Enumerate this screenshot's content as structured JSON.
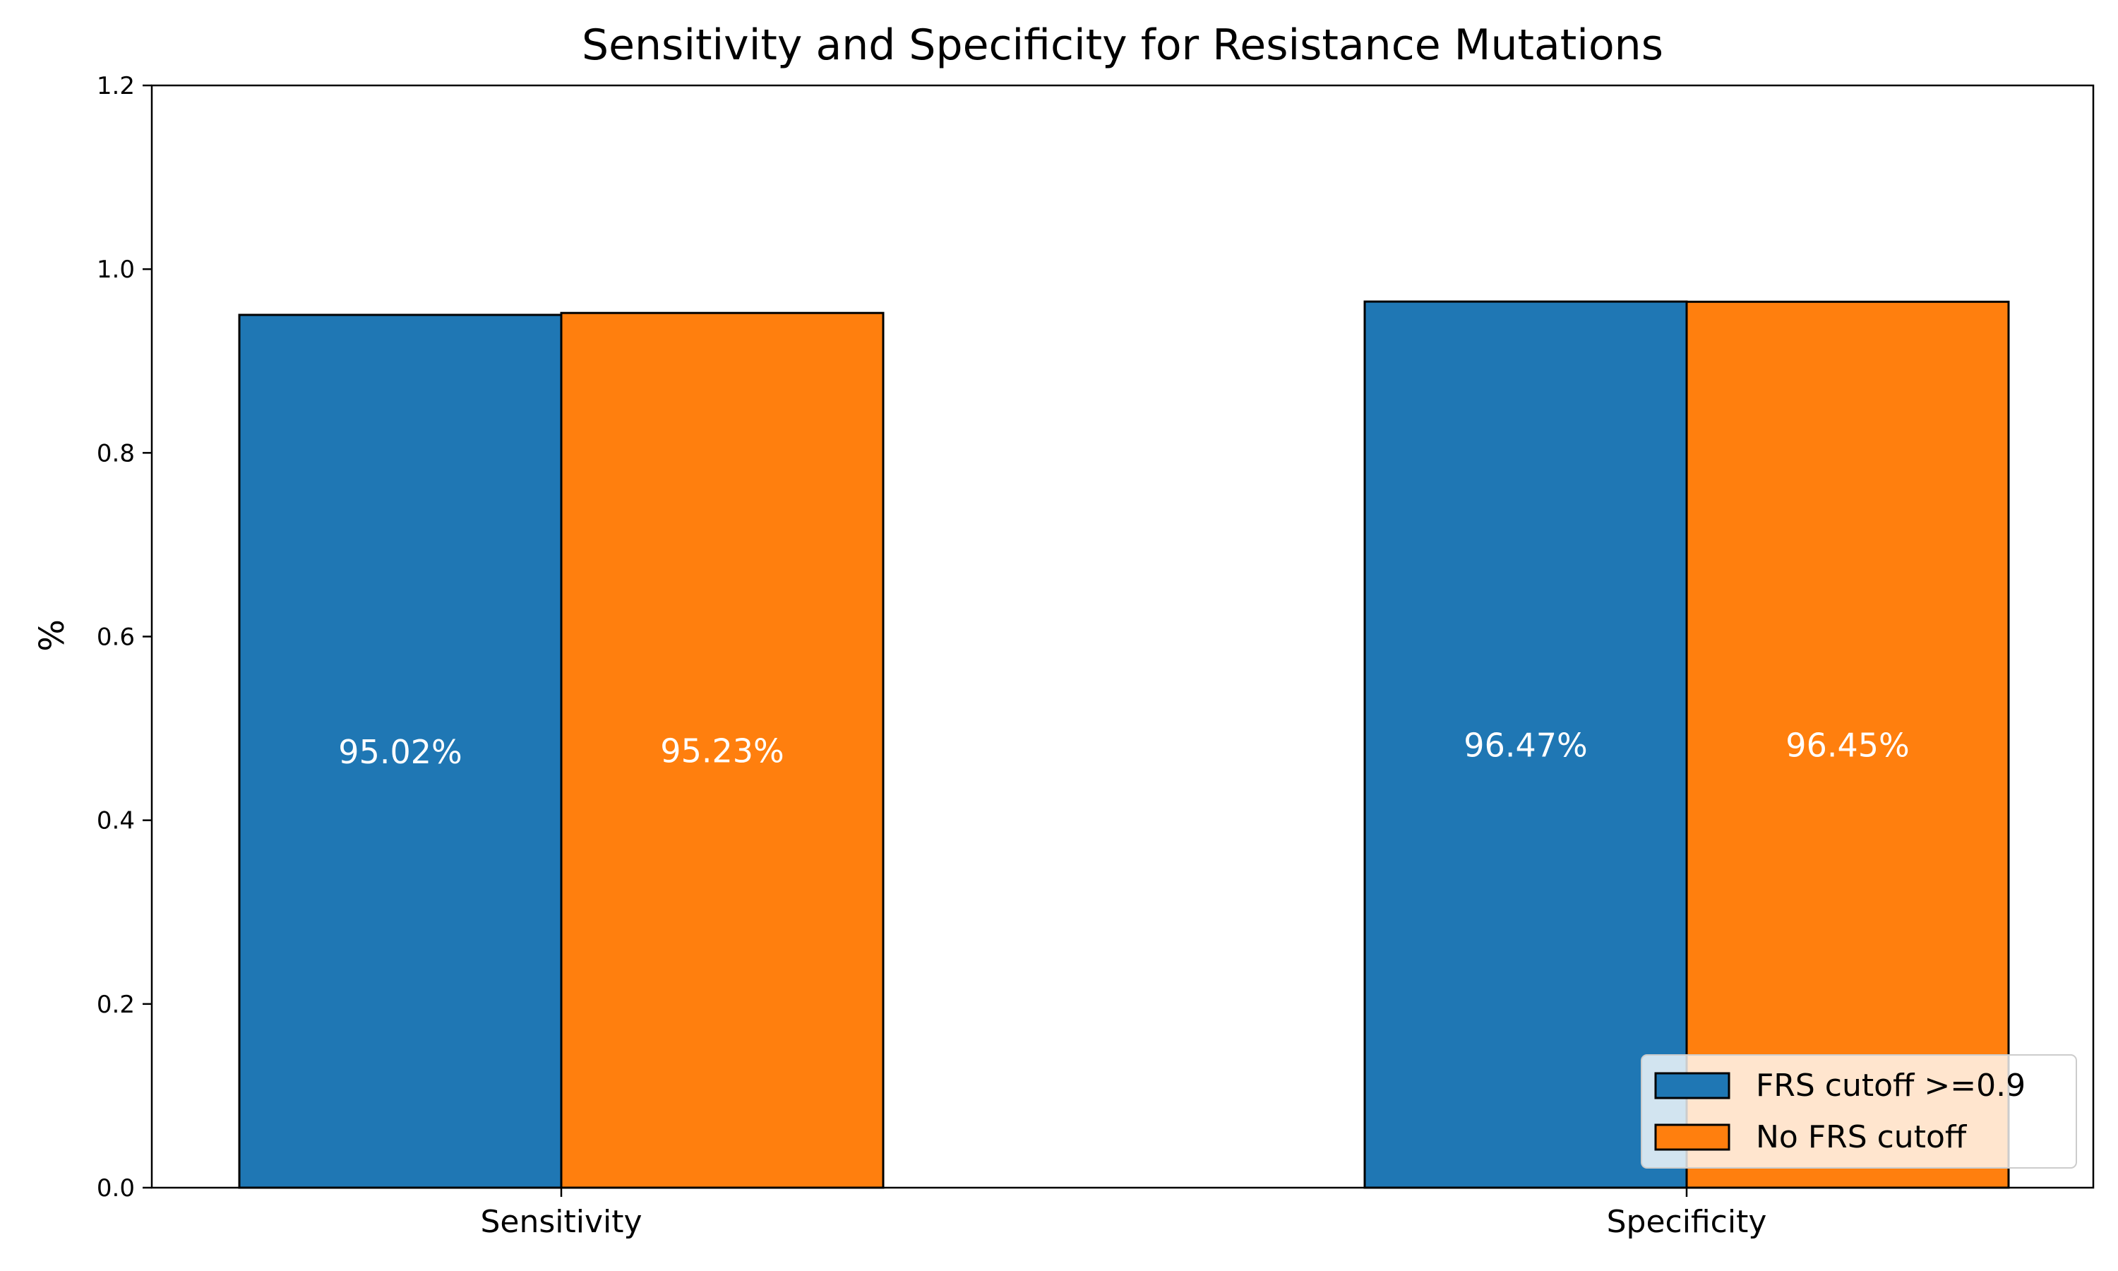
{
  "chart_data": {
    "type": "bar",
    "title": "Sensitivity and Specificity for Resistance Mutations",
    "xlabel": "",
    "ylabel": "%",
    "categories": [
      "Sensitivity",
      "Specificity"
    ],
    "ylim": [
      0,
      1.2
    ],
    "yticks": [
      0.0,
      0.2,
      0.4,
      0.6,
      0.8,
      1.0,
      1.2
    ],
    "ytick_labels": [
      "0.0",
      "0.2",
      "0.4",
      "0.6",
      "0.8",
      "1.0",
      "1.2"
    ],
    "grid": false,
    "legend_position": "lower-right",
    "series": [
      {
        "name": "FRS cutoff >=0.9",
        "color": "#1f77b4",
        "values": [
          0.9502,
          0.9647
        ],
        "labels": [
          "95.02%",
          "96.47%"
        ]
      },
      {
        "name": "No FRS cutoff",
        "color": "#ff7f0e",
        "values": [
          0.9523,
          0.9645
        ],
        "labels": [
          "95.23%",
          "96.45%"
        ]
      }
    ]
  }
}
